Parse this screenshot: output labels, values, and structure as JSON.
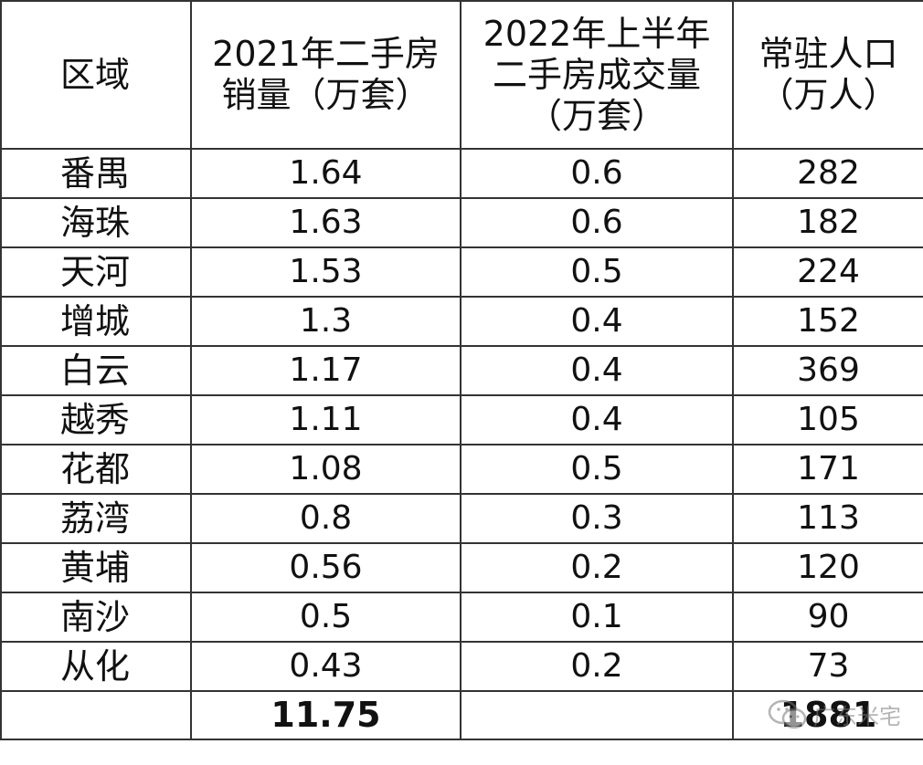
{
  "table": {
    "headers": {
      "region": "区域",
      "sales2021": [
        "2021年二手房",
        "销量（万套）"
      ],
      "deals2022": [
        "2022年上半年",
        "二手房成交量",
        "（万套）"
      ],
      "population": [
        "常驻人口",
        "（万人）"
      ]
    },
    "rows": [
      {
        "region": "番禺",
        "sales2021": "1.64",
        "deals2022": "0.6",
        "population": "282"
      },
      {
        "region": "海珠",
        "sales2021": "1.63",
        "deals2022": "0.6",
        "population": "182"
      },
      {
        "region": "天河",
        "sales2021": "1.53",
        "deals2022": "0.5",
        "population": "224"
      },
      {
        "region": "增城",
        "sales2021": "1.3",
        "deals2022": "0.4",
        "population": "152"
      },
      {
        "region": "白云",
        "sales2021": "1.17",
        "deals2022": "0.4",
        "population": "369"
      },
      {
        "region": "越秀",
        "sales2021": "1.11",
        "deals2022": "0.4",
        "population": "105"
      },
      {
        "region": "花都",
        "sales2021": "1.08",
        "deals2022": "0.5",
        "population": "171"
      },
      {
        "region": "荔湾",
        "sales2021": "0.8",
        "deals2022": "0.3",
        "population": "113"
      },
      {
        "region": "黄埔",
        "sales2021": "0.56",
        "deals2022": "0.2",
        "population": "120"
      },
      {
        "region": "南沙",
        "sales2021": "0.5",
        "deals2022": "0.1",
        "population": "90"
      },
      {
        "region": "从化",
        "sales2021": "0.43",
        "deals2022": "0.2",
        "population": "73"
      }
    ],
    "totals": {
      "region": "",
      "sales2021": "11.75",
      "deals2022": "",
      "population": "1881"
    }
  },
  "watermark": {
    "text": "广东米宅",
    "icon": "wechat-icon",
    "color": "#777777"
  },
  "colors": {
    "border": "#333333",
    "text": "#111111",
    "background": "#ffffff"
  }
}
